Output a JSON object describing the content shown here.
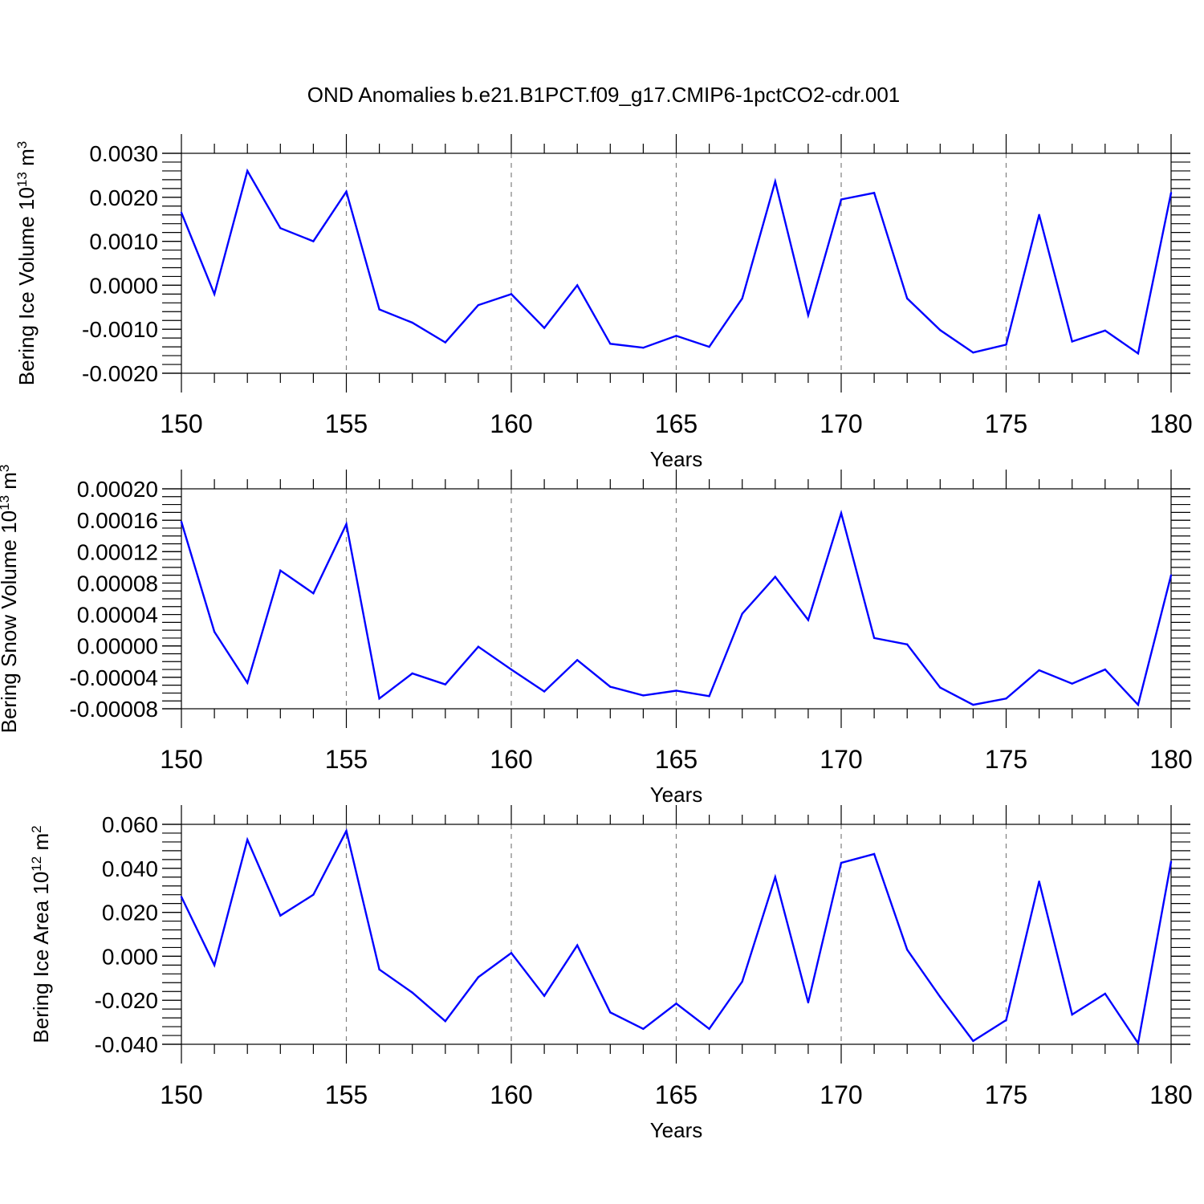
{
  "figure": {
    "title": "OND Anomalies b.e21.B1PCT.f09_g17.CMIP6-1pctCO2-cdr.001",
    "line_color": "#0000ff"
  },
  "chart_data": [
    {
      "type": "line",
      "id": "ice-volume",
      "ylabel_main": "Bering Ice Volume 10",
      "ylabel_exp": "13",
      "ylabel_unit": " m",
      "ylabel_unit_exp": "3",
      "xlabel": "Years",
      "xlim": [
        150,
        180
      ],
      "ylim": [
        -0.002,
        0.003
      ],
      "yticks": [
        -0.002,
        -0.001,
        0.0,
        0.001,
        0.002,
        0.003
      ],
      "ytick_labels": [
        "-0.0020",
        "-0.0010",
        "0.0000",
        "0.0010",
        "0.0020",
        "0.0030"
      ],
      "yminor_step": 0.0002,
      "xticks": [
        150,
        155,
        160,
        165,
        170,
        175,
        180
      ],
      "xtick_labels": [
        "150",
        "155",
        "160",
        "165",
        "170",
        "175",
        "180"
      ],
      "grid_x": [
        155,
        160,
        165,
        170,
        175
      ],
      "x": [
        150,
        151,
        152,
        153,
        154,
        155,
        156,
        157,
        158,
        159,
        160,
        161,
        162,
        163,
        164,
        165,
        166,
        167,
        168,
        169,
        170,
        171,
        172,
        173,
        174,
        175,
        176,
        177,
        178,
        179,
        180
      ],
      "values": [
        0.00165,
        -0.0002,
        0.0026,
        0.0013,
        0.001,
        0.00213,
        -0.00055,
        -0.00085,
        -0.0013,
        -0.00045,
        -0.0002,
        -0.00097,
        0.0,
        -0.00133,
        -0.00142,
        -0.00115,
        -0.0014,
        -0.0003,
        0.00236,
        -0.00068,
        0.00195,
        0.0021,
        -0.0003,
        -0.00102,
        -0.00153,
        -0.00135,
        0.0016,
        -0.00128,
        -0.00103,
        -0.00155,
        0.0021
      ]
    },
    {
      "type": "line",
      "id": "snow-volume",
      "ylabel_main": "Bering Snow Volume 10",
      "ylabel_exp": "13",
      "ylabel_unit": " m",
      "ylabel_unit_exp": "3",
      "xlabel": "Years",
      "xlim": [
        150,
        180
      ],
      "ylim": [
        -8e-05,
        0.0002
      ],
      "yticks": [
        -8e-05,
        -4e-05,
        0.0,
        4e-05,
        8e-05,
        0.00012,
        0.00016,
        0.0002
      ],
      "ytick_labels": [
        "-0.00008",
        "-0.00004",
        "0.00000",
        "0.00004",
        "0.00008",
        "0.00012",
        "0.00016",
        "0.00020"
      ],
      "yminor_step": 1e-05,
      "xticks": [
        150,
        155,
        160,
        165,
        170,
        175,
        180
      ],
      "xtick_labels": [
        "150",
        "155",
        "160",
        "165",
        "170",
        "175",
        "180"
      ],
      "grid_x": [
        155,
        160,
        165
      ],
      "x": [
        150,
        151,
        152,
        153,
        154,
        155,
        156,
        157,
        158,
        159,
        160,
        161,
        162,
        163,
        164,
        165,
        166,
        167,
        168,
        169,
        170,
        171,
        172,
        173,
        174,
        175,
        176,
        177,
        178,
        179,
        180
      ],
      "values": [
        0.000158,
        1.8e-05,
        -4.7e-05,
        9.6e-05,
        6.7e-05,
        0.000155,
        -6.7e-05,
        -3.5e-05,
        -4.9e-05,
        -1e-06,
        -3e-05,
        -5.8e-05,
        -1.8e-05,
        -5.2e-05,
        -6.3e-05,
        -5.7e-05,
        -6.4e-05,
        4.1e-05,
        8.8e-05,
        3.3e-05,
        0.000169,
        1e-05,
        2e-06,
        -5.3e-05,
        -7.5e-05,
        -6.7e-05,
        -3.1e-05,
        -4.8e-05,
        -3e-05,
        -7.5e-05,
        9e-05
      ]
    },
    {
      "type": "line",
      "id": "ice-area",
      "ylabel_main": "Bering Ice Area 10",
      "ylabel_exp": "12",
      "ylabel_unit": " m",
      "ylabel_unit_exp": "2",
      "xlabel": "Years",
      "xlim": [
        150,
        180
      ],
      "ylim": [
        -0.04,
        0.06
      ],
      "yticks": [
        -0.04,
        -0.02,
        0.0,
        0.02,
        0.04,
        0.06
      ],
      "ytick_labels": [
        "-0.040",
        "-0.020",
        "0.000",
        "0.020",
        "0.040",
        "0.060"
      ],
      "yminor_step": 0.004,
      "xticks": [
        150,
        155,
        160,
        165,
        170,
        175,
        180
      ],
      "xtick_labels": [
        "150",
        "155",
        "160",
        "165",
        "170",
        "175",
        "180"
      ],
      "grid_x": [
        155,
        160,
        165,
        170,
        175
      ],
      "x": [
        150,
        151,
        152,
        153,
        154,
        155,
        156,
        157,
        158,
        159,
        160,
        161,
        162,
        163,
        164,
        165,
        166,
        167,
        168,
        169,
        170,
        171,
        172,
        173,
        174,
        175,
        176,
        177,
        178,
        179,
        180
      ],
      "values": [
        0.027,
        -0.004,
        0.053,
        0.0185,
        0.028,
        0.057,
        -0.006,
        -0.0165,
        -0.0295,
        -0.0095,
        0.0015,
        -0.018,
        0.005,
        -0.0255,
        -0.033,
        -0.0215,
        -0.033,
        -0.0115,
        0.036,
        -0.021,
        0.0425,
        0.0465,
        0.003,
        -0.0185,
        -0.0385,
        -0.029,
        0.034,
        -0.0265,
        -0.017,
        -0.0395,
        0.043
      ]
    }
  ]
}
